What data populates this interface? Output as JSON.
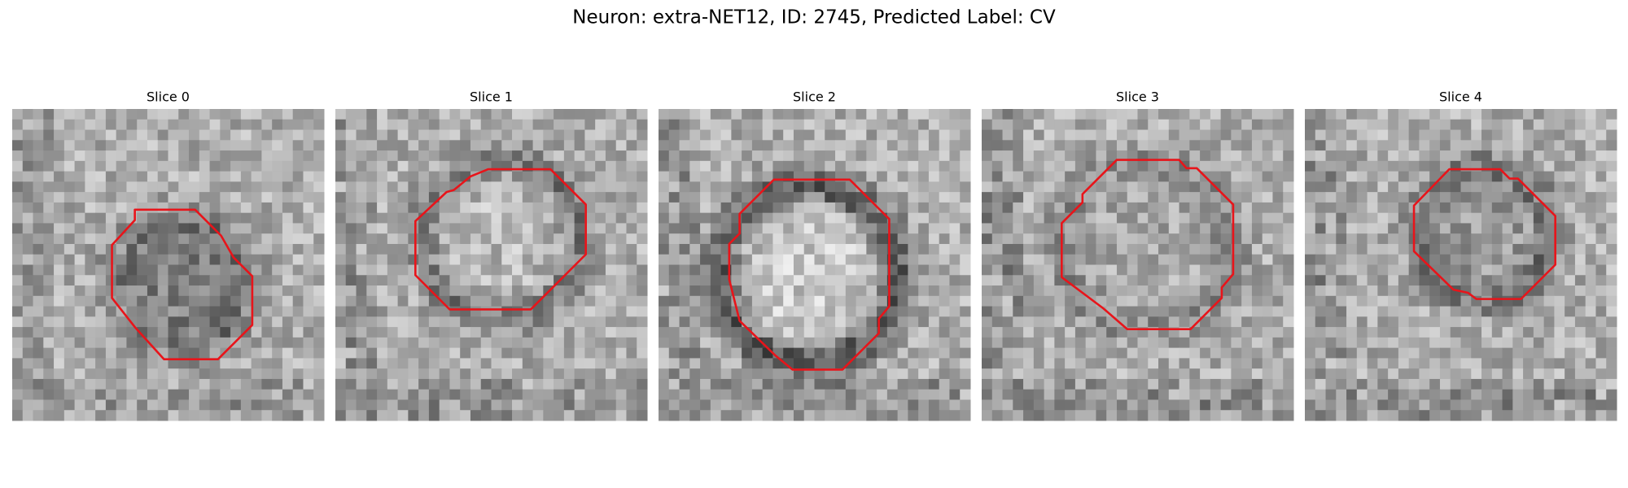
{
  "title": "Neuron: extra-NET12, ID: 2745, Predicted Label: CV",
  "panels": [
    {
      "title": "Slice 0"
    },
    {
      "title": "Slice 1"
    },
    {
      "title": "Slice 2"
    },
    {
      "title": "Slice 3"
    },
    {
      "title": "Slice 4"
    }
  ]
}
